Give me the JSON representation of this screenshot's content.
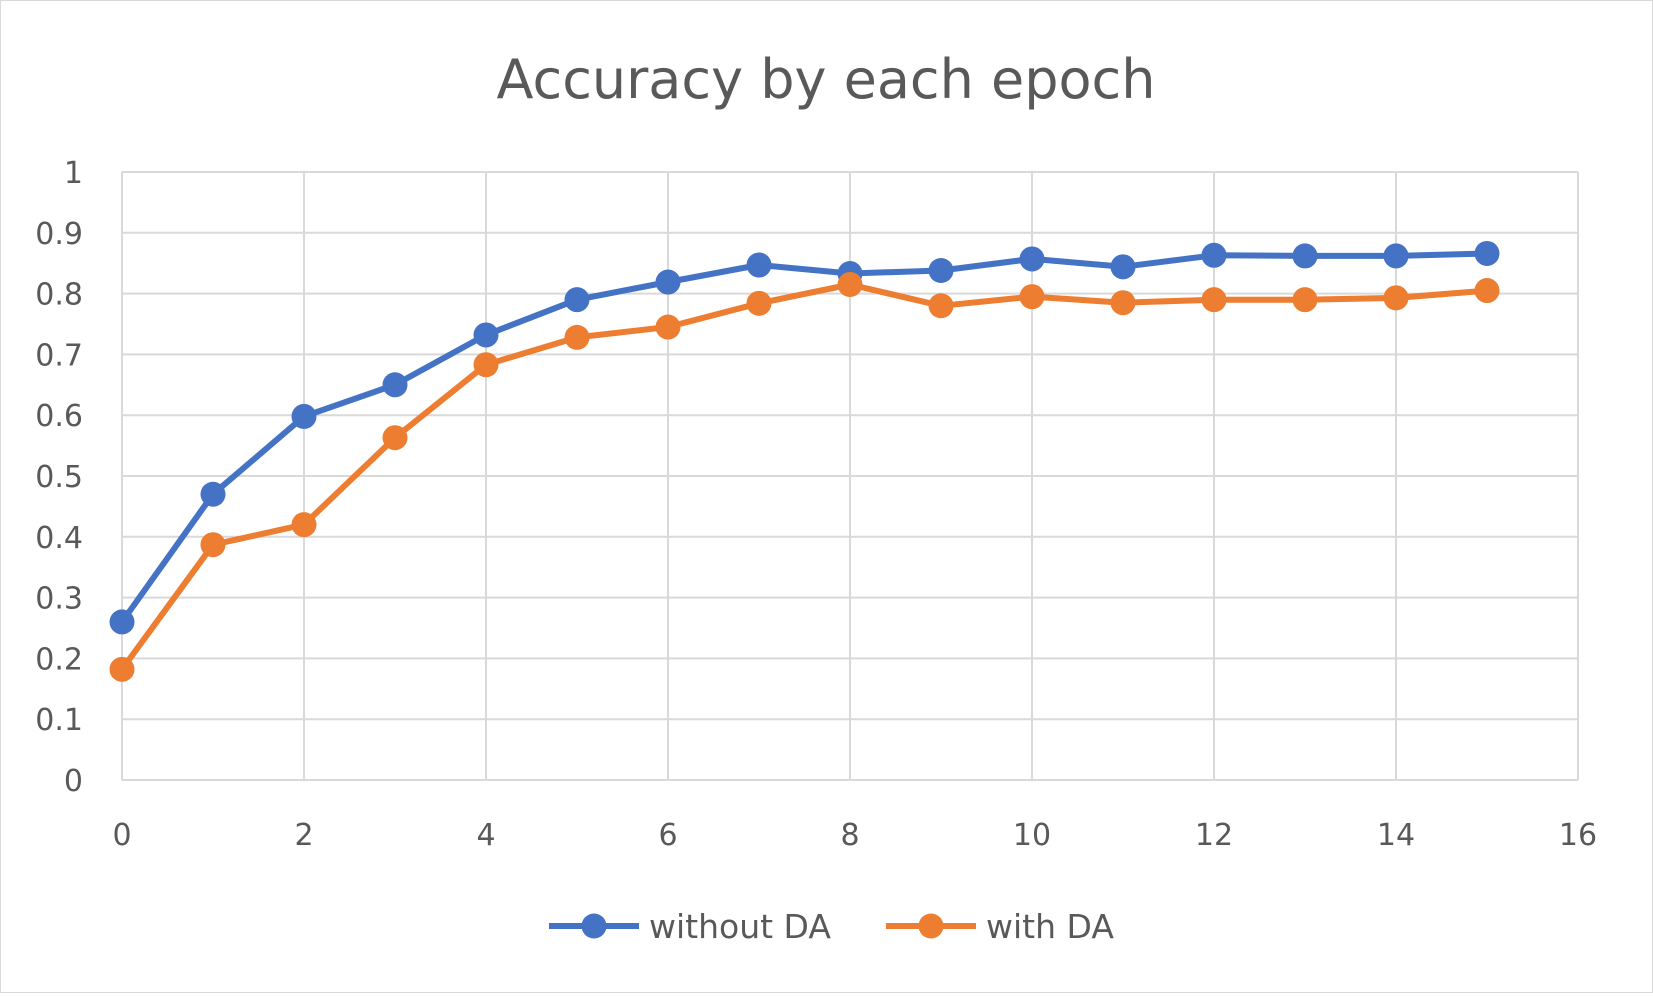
{
  "chart_data": {
    "type": "line",
    "title": "Accuracy by each epoch",
    "xlabel": "",
    "ylabel": "",
    "xlim": [
      0,
      16
    ],
    "ylim": [
      0,
      1
    ],
    "x_ticks": [
      0,
      2,
      4,
      6,
      8,
      10,
      12,
      14,
      16
    ],
    "x_tick_labels": [
      "0",
      "2",
      "4",
      "6",
      "8",
      "10",
      "12",
      "14",
      "16"
    ],
    "y_ticks": [
      0,
      0.1,
      0.2,
      0.3,
      0.4,
      0.5,
      0.6,
      0.7,
      0.8,
      0.9,
      1
    ],
    "y_tick_labels": [
      "0",
      "0.1",
      "0.2",
      "0.3",
      "0.4",
      "0.5",
      "0.6",
      "0.7",
      "0.8",
      "0.9",
      "1"
    ],
    "grid": true,
    "legend_position": "bottom",
    "x": [
      0,
      1,
      2,
      3,
      4,
      5,
      6,
      7,
      8,
      9,
      10,
      11,
      12,
      13,
      14,
      15
    ],
    "series": [
      {
        "name": "without DA",
        "color": "#4472c4",
        "values": [
          0.26,
          0.47,
          0.598,
          0.65,
          0.732,
          0.79,
          0.819,
          0.847,
          0.833,
          0.838,
          0.857,
          0.844,
          0.863,
          0.862,
          0.862,
          0.866
        ]
      },
      {
        "name": "with DA",
        "color": "#ed7d31",
        "values": [
          0.182,
          0.387,
          0.42,
          0.563,
          0.683,
          0.728,
          0.745,
          0.784,
          0.815,
          0.78,
          0.795,
          0.785,
          0.79,
          0.79,
          0.793,
          0.805
        ]
      }
    ]
  }
}
